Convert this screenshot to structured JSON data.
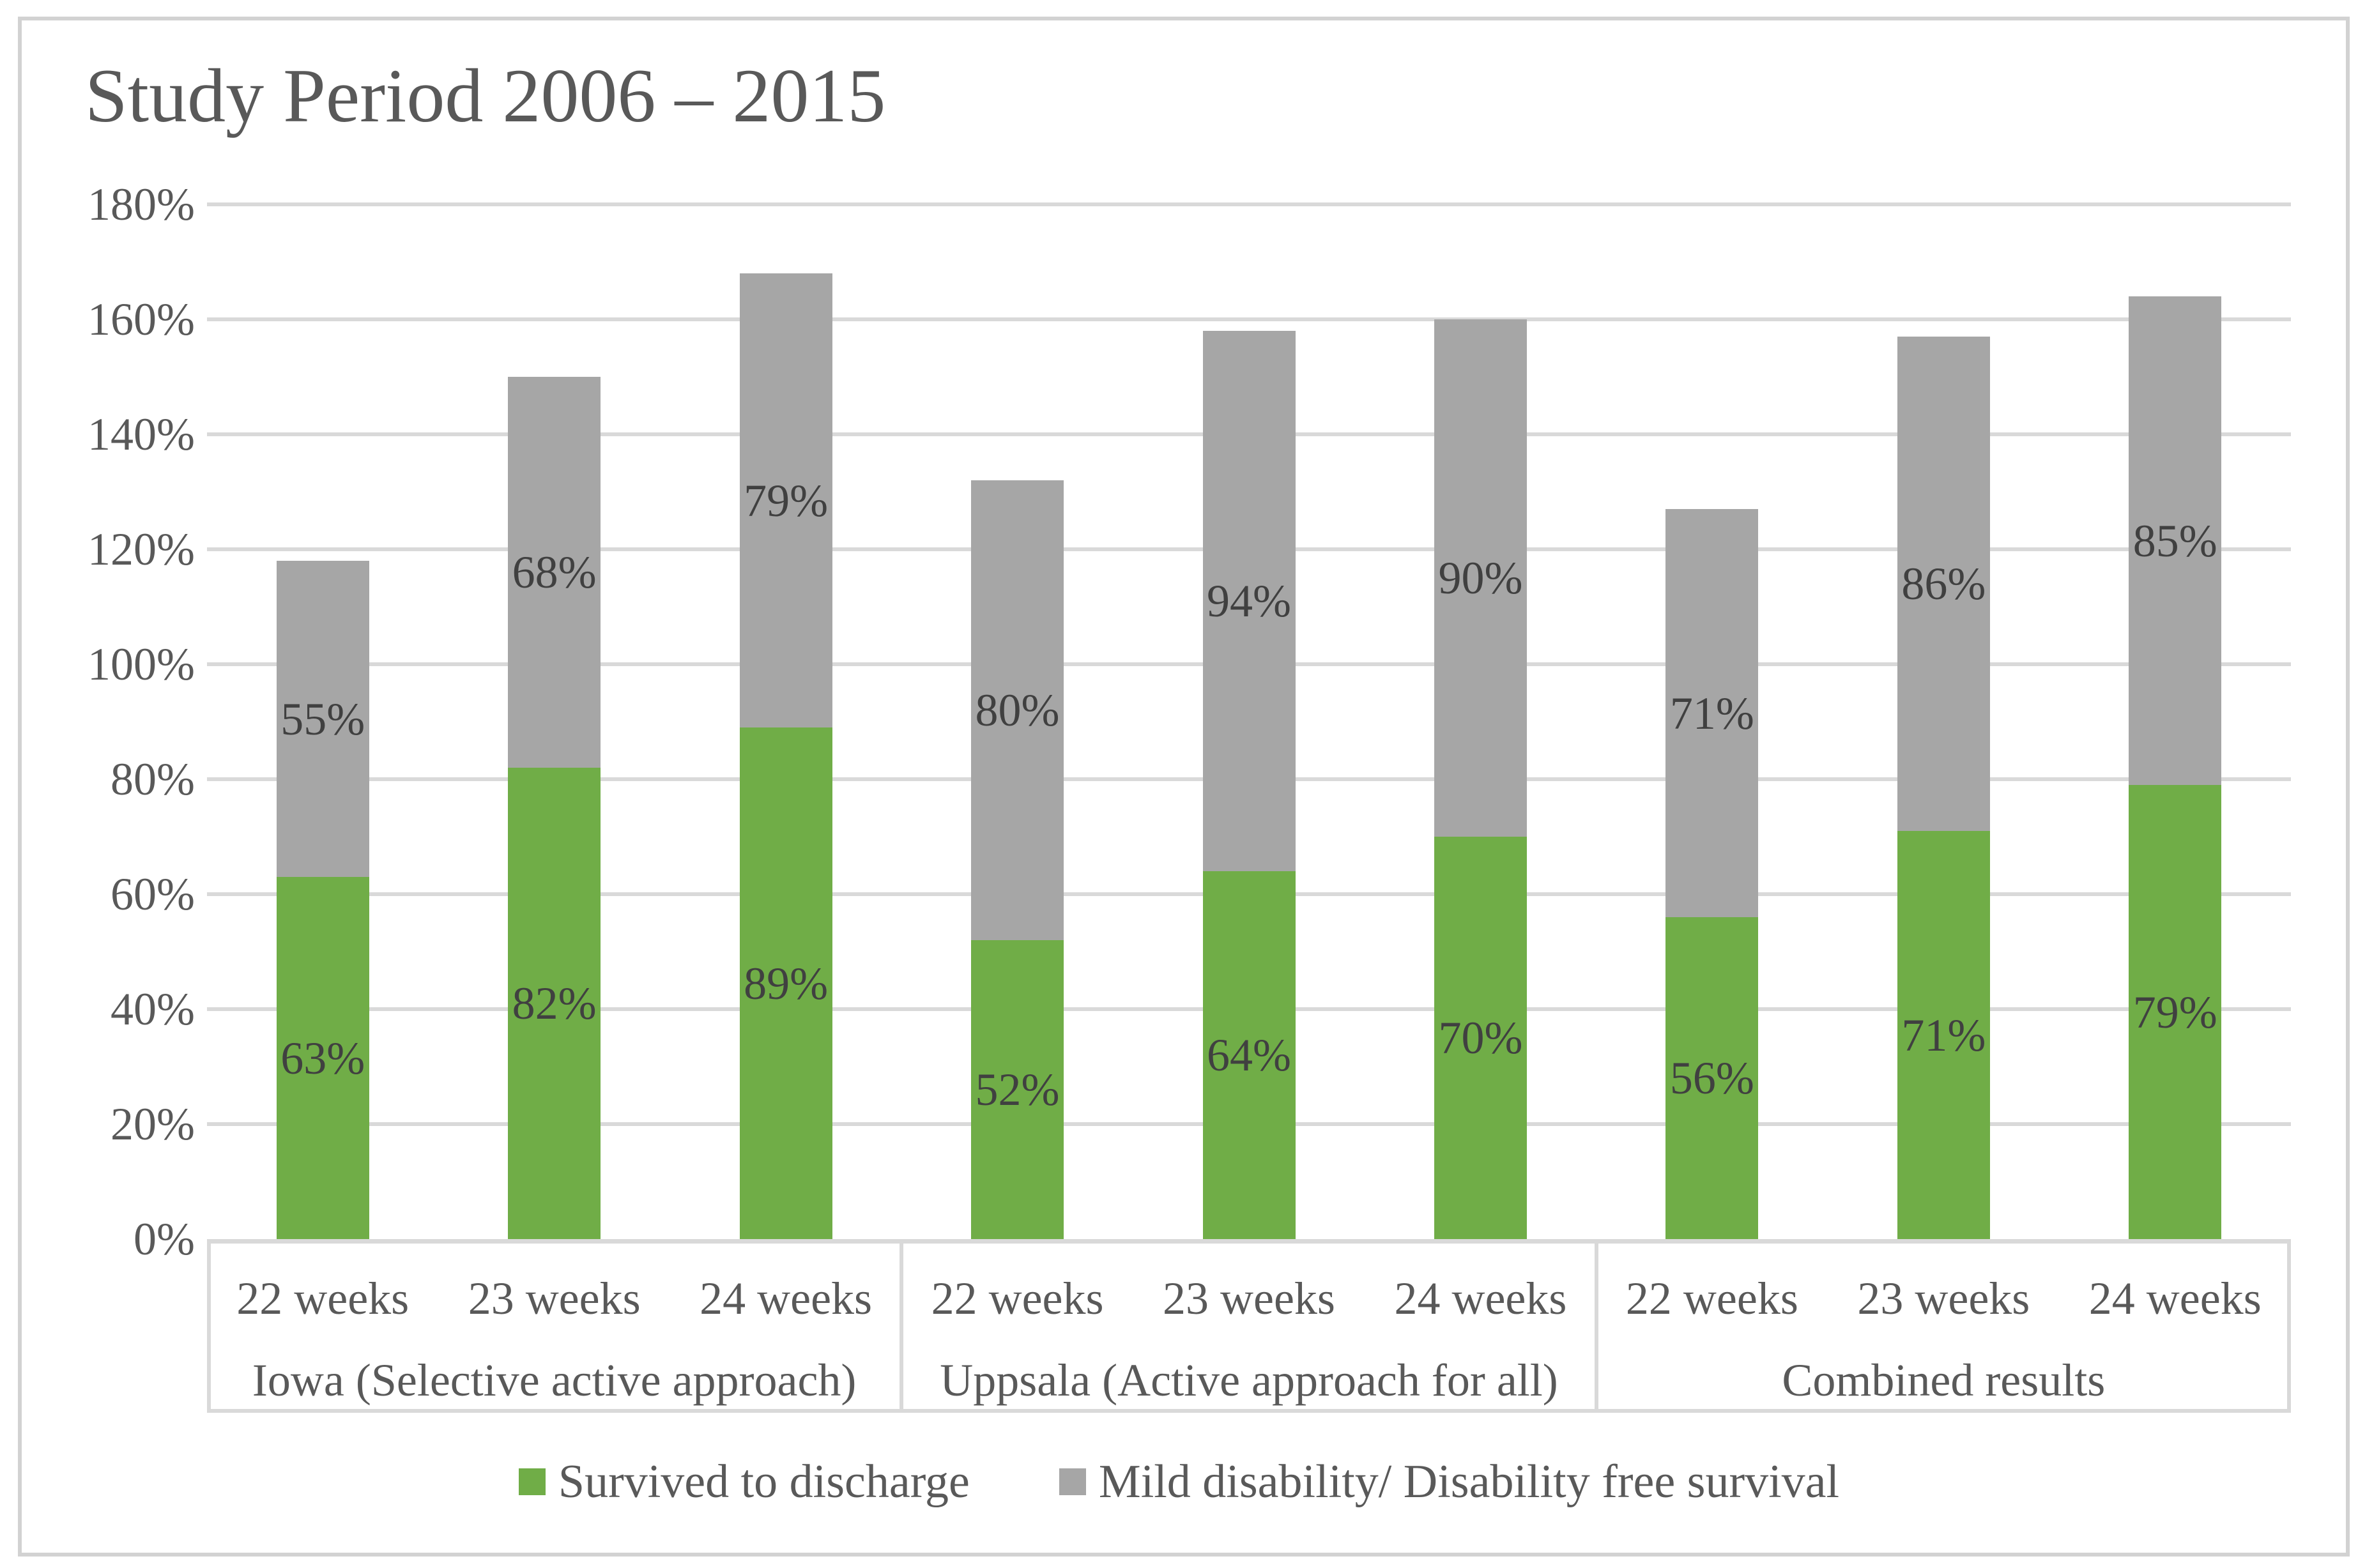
{
  "title": "Study Period 2006 – 2015",
  "chart_data": {
    "type": "bar",
    "stacked": true,
    "title": "Study Period 2006 – 2015",
    "xlabel": "",
    "ylabel": "",
    "ylim": [
      0,
      180
    ],
    "ytick_step": 20,
    "yticks": [
      "0%",
      "20%",
      "40%",
      "60%",
      "80%",
      "100%",
      "120%",
      "140%",
      "160%",
      "180%"
    ],
    "grid": true,
    "legend_position": "bottom",
    "value_suffix": "%",
    "groups": [
      {
        "label": "Iowa (Selective active approach)"
      },
      {
        "label": "Uppsala (Active approach for all)"
      },
      {
        "label": "Combined results"
      }
    ],
    "categories_per_group": [
      "22 weeks",
      "23 weeks",
      "24 weeks"
    ],
    "categories": [
      "22 weeks",
      "23 weeks",
      "24 weeks",
      "22 weeks",
      "23 weeks",
      "24 weeks",
      "22 weeks",
      "23 weeks",
      "24 weeks"
    ],
    "series": [
      {
        "name": "Survived to discharge",
        "color": "#70AD47",
        "values": [
          63,
          82,
          89,
          52,
          64,
          70,
          56,
          71,
          79
        ]
      },
      {
        "name": "Mild disability/ Disability free survival",
        "color": "#A6A6A6",
        "values": [
          55,
          68,
          79,
          80,
          94,
          90,
          71,
          86,
          85
        ]
      }
    ],
    "bar_totals": [
      118,
      150,
      168,
      132,
      158,
      160,
      127,
      157,
      164
    ],
    "colors": {
      "gridline": "#D9D9D9",
      "axis_text": "#595959",
      "data_label_text": "#404040",
      "frame_border": "#D2D2D2"
    }
  }
}
